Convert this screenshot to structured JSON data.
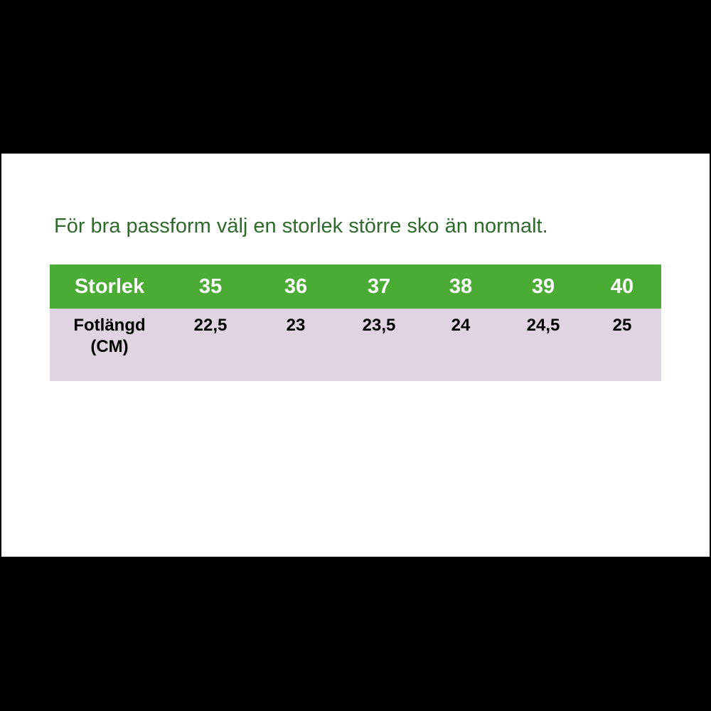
{
  "note": "För bra passform välj en storlek större sko än normalt.",
  "table": {
    "header": {
      "label": "Storlek",
      "sizes": [
        "35",
        "36",
        "37",
        "38",
        "39",
        "40"
      ]
    },
    "row": {
      "label_line1": "Fotlängd",
      "label_line2": "(CM)",
      "values": [
        "22,5",
        "23",
        "23,5",
        "24",
        "24,5",
        "25"
      ]
    }
  },
  "colors": {
    "note_text": "#2e6b2b",
    "header_bg": "#4aac34",
    "header_text": "#ffffff",
    "row_bg": "#e0d3e2",
    "row_text": "#000000"
  }
}
